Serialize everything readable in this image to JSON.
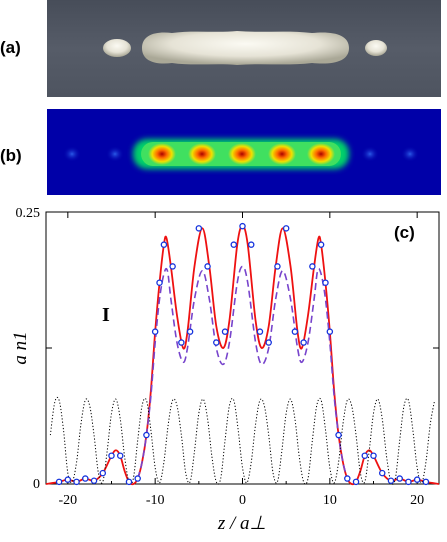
{
  "panels": {
    "a": {
      "label": "(a)"
    },
    "b": {
      "label": "(b)"
    },
    "c": {
      "label": "(c)"
    }
  },
  "annotation": "I",
  "colors": {
    "solid": "#ee1111",
    "dashed": "#7744cc",
    "markers": "#1533dd",
    "dotted": "#000000"
  },
  "chart_data": {
    "type": "line",
    "xlabel": "z / a⊥",
    "ylabel": "a n1",
    "xlim": [
      -22.5,
      22.5
    ],
    "ylim": [
      0,
      0.25
    ],
    "xticks": [
      -20,
      -10,
      0,
      10,
      20
    ],
    "yticks_labeled": [
      0,
      0.25
    ],
    "series": [
      {
        "style": "solid-red",
        "x": [
          -22.5,
          -21,
          -20,
          -19,
          -18,
          -17,
          -16,
          -15,
          -14.5,
          -14,
          -13.5,
          -13,
          -12.5,
          -12,
          -11.5,
          -11,
          -10.5,
          -10,
          -9.5,
          -9,
          -8.7,
          -8.2,
          -7.5,
          -6.8,
          -6.3,
          -5.5,
          -4.6,
          -3.8,
          -3,
          -2.2,
          -1.5,
          -0.6,
          0,
          0.6,
          1.5,
          2.2,
          3,
          3.8,
          4.6,
          5.5,
          6.3,
          6.8,
          7.5,
          8.2,
          8.7,
          9,
          9.5,
          10,
          10.5,
          11,
          11.5,
          12,
          12.5,
          13,
          13.5,
          14,
          14.5,
          15,
          16,
          17,
          18,
          19,
          20,
          21,
          22.5
        ],
        "y": [
          0.0,
          0.002,
          0.004,
          0.002,
          0.005,
          0.003,
          0.01,
          0.026,
          0.031,
          0.026,
          0.012,
          0.002,
          0.0,
          0.005,
          0.02,
          0.045,
          0.085,
          0.14,
          0.185,
          0.22,
          0.226,
          0.2,
          0.155,
          0.125,
          0.14,
          0.2,
          0.235,
          0.2,
          0.145,
          0.125,
          0.15,
          0.22,
          0.237,
          0.22,
          0.15,
          0.125,
          0.145,
          0.2,
          0.235,
          0.2,
          0.14,
          0.125,
          0.155,
          0.2,
          0.226,
          0.22,
          0.185,
          0.14,
          0.085,
          0.045,
          0.02,
          0.005,
          0.0,
          0.002,
          0.012,
          0.026,
          0.031,
          0.026,
          0.01,
          0.003,
          0.005,
          0.002,
          0.004,
          0.002,
          0.0
        ]
      },
      {
        "style": "dashed-purple",
        "x": [
          -12,
          -11.5,
          -11,
          -10.5,
          -10,
          -9.5,
          -9,
          -8.6,
          -8.2,
          -7.5,
          -6.8,
          -6.3,
          -5.5,
          -4.6,
          -3.8,
          -3,
          -2.2,
          -1.5,
          -0.6,
          0,
          0.6,
          1.5,
          2.2,
          3,
          3.8,
          4.6,
          5.5,
          6.3,
          6.8,
          7.5,
          8.2,
          8.6,
          9,
          9.5,
          10,
          10.5,
          11,
          11.5,
          12
        ],
        "y": [
          0.005,
          0.02,
          0.045,
          0.08,
          0.13,
          0.17,
          0.193,
          0.196,
          0.17,
          0.13,
          0.112,
          0.125,
          0.17,
          0.196,
          0.17,
          0.125,
          0.11,
          0.13,
          0.185,
          0.2,
          0.185,
          0.13,
          0.11,
          0.125,
          0.17,
          0.196,
          0.17,
          0.125,
          0.112,
          0.13,
          0.17,
          0.196,
          0.193,
          0.17,
          0.13,
          0.08,
          0.045,
          0.02,
          0.005
        ]
      },
      {
        "style": "dotted-black",
        "x": [
          -22,
          -21.5,
          -21,
          -20.5,
          -20,
          -19.5,
          -19,
          -18.5,
          -18,
          -17.5,
          -17,
          -16.5,
          -16,
          -15.5,
          -15,
          -14.5,
          -14,
          -13.5,
          -13,
          -12.5,
          -12,
          -11.5,
          -11,
          -10.5,
          -10,
          -9.5,
          -9,
          -8.5,
          -8,
          -7.5,
          -7,
          -6.5,
          -6,
          -5.5,
          -5,
          -4.5,
          -4,
          -3.5,
          -3,
          -2.5,
          -2,
          -1.5,
          -1,
          -0.5,
          0,
          0.5,
          1,
          1.5,
          2,
          2.5,
          3,
          3.5,
          4,
          4.5,
          5,
          5.5,
          6,
          6.5,
          7,
          7.5,
          8,
          8.5,
          9,
          9.5,
          10,
          10.5,
          11,
          11.5,
          12,
          12.5,
          13,
          13.5,
          14,
          14.5,
          15,
          15.5,
          16,
          16.5,
          17,
          17.5,
          18,
          18.5,
          19,
          19.5,
          20,
          20.5,
          21,
          21.5,
          22
        ],
        "y": [
          0.045,
          0.075,
          0.077,
          0.05,
          0.01,
          0.002,
          0.02,
          0.055,
          0.077,
          0.072,
          0.045,
          0.01,
          0.002,
          0.03,
          0.065,
          0.078,
          0.06,
          0.025,
          0.002,
          0.005,
          0.04,
          0.072,
          0.077,
          0.05,
          0.015,
          0.001,
          0.02,
          0.055,
          0.077,
          0.072,
          0.045,
          0.01,
          0.002,
          0.03,
          0.065,
          0.078,
          0.06,
          0.025,
          0.002,
          0.005,
          0.04,
          0.072,
          0.077,
          0.05,
          0.015,
          0.001,
          0.02,
          0.055,
          0.077,
          0.072,
          0.045,
          0.01,
          0.002,
          0.03,
          0.065,
          0.078,
          0.06,
          0.025,
          0.002,
          0.005,
          0.04,
          0.072,
          0.077,
          0.05,
          0.015,
          0.001,
          0.02,
          0.055,
          0.077,
          0.072,
          0.045,
          0.01,
          0.002,
          0.03,
          0.065,
          0.078,
          0.06,
          0.025,
          0.002,
          0.005,
          0.04,
          0.072,
          0.077,
          0.05,
          0.015,
          0.001,
          0.02,
          0.055,
          0.077
        ]
      },
      {
        "style": "markers-blue",
        "x": [
          -21,
          -20,
          -19,
          -18,
          -17,
          -16,
          -15,
          -14,
          -13,
          -12,
          -11,
          -10,
          -9.5,
          -9,
          -8,
          -7,
          -6,
          -5,
          -4,
          -3,
          -2,
          -1,
          0,
          1,
          2,
          3,
          4,
          5,
          6,
          7,
          8,
          9,
          9.5,
          10,
          11,
          12,
          13,
          14,
          15,
          16,
          17,
          18,
          19,
          20,
          21
        ],
        "y": [
          0.002,
          0.004,
          0.002,
          0.005,
          0.003,
          0.01,
          0.026,
          0.026,
          0.002,
          0.005,
          0.045,
          0.14,
          0.185,
          0.22,
          0.2,
          0.13,
          0.14,
          0.235,
          0.2,
          0.13,
          0.14,
          0.22,
          0.237,
          0.22,
          0.14,
          0.13,
          0.2,
          0.235,
          0.14,
          0.13,
          0.2,
          0.22,
          0.185,
          0.14,
          0.045,
          0.005,
          0.002,
          0.026,
          0.026,
          0.01,
          0.003,
          0.005,
          0.002,
          0.004,
          0.002
        ]
      }
    ]
  }
}
